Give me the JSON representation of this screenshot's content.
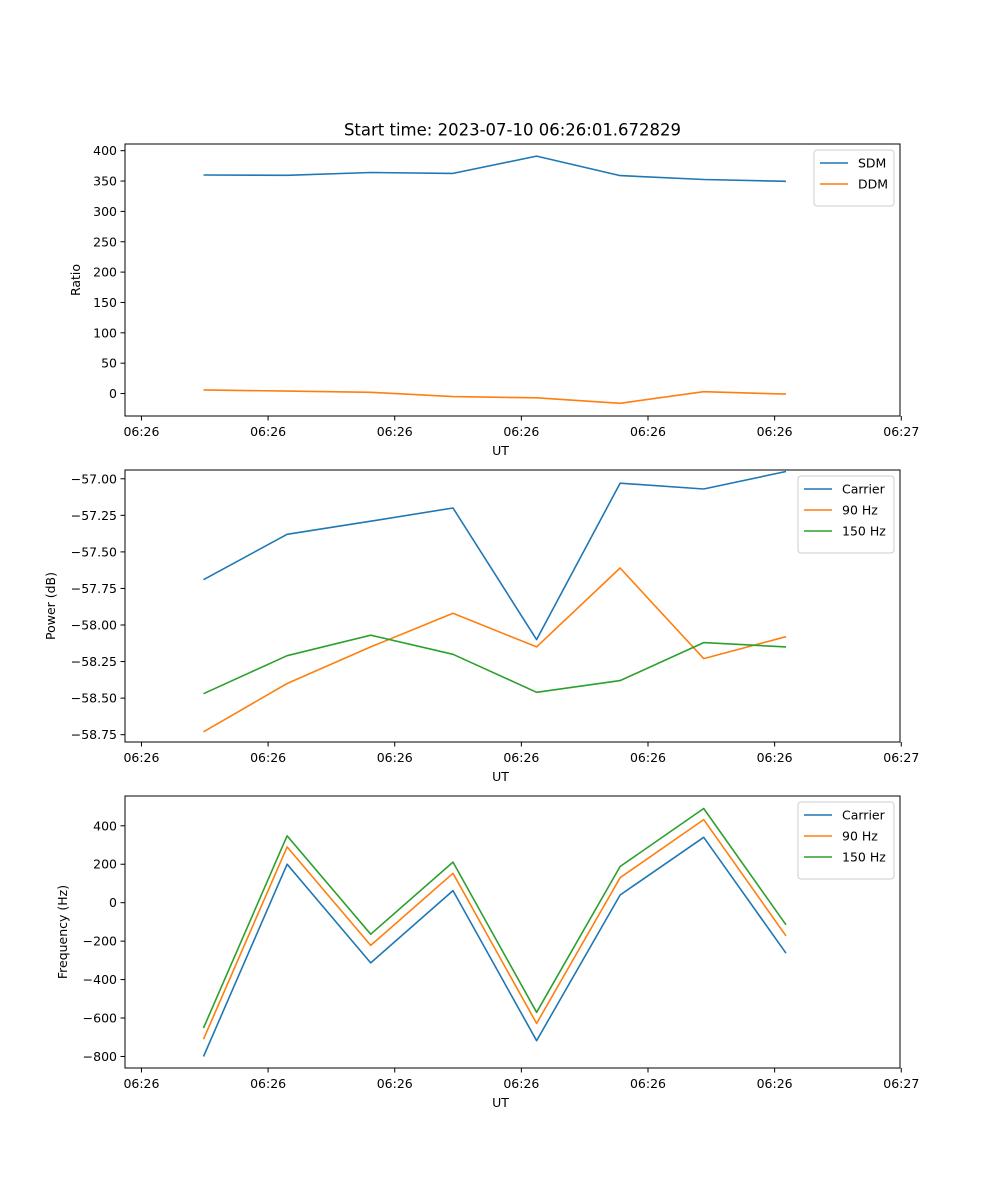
{
  "figure_title": "Start time: 2023-07-10 06:26:01.672829",
  "colors": {
    "blue": "#1f77b4",
    "orange": "#ff7f0e",
    "green": "#2ca02c"
  },
  "chart_data": [
    {
      "type": "line",
      "xlabel": "UT",
      "ylabel": "Ratio",
      "x_tick_labels": [
        "06:26",
        "06:26",
        "06:26",
        "06:26",
        "06:26",
        "06:26",
        "06:27"
      ],
      "x_tick_positions": [
        0,
        1,
        2,
        3,
        4,
        5,
        6
      ],
      "xlim": [
        -0.13,
        5.99
      ],
      "x": [
        0.49,
        1.15,
        1.81,
        2.46,
        3.12,
        3.78,
        4.44,
        5.09
      ],
      "ylim": [
        -37,
        411
      ],
      "yticks": [
        0,
        50,
        100,
        150,
        200,
        250,
        300,
        350,
        400
      ],
      "legend_position": "top-right",
      "series": [
        {
          "name": "SDM",
          "color": "#1f77b4",
          "values": [
            360,
            359.5,
            364,
            362.5,
            391,
            359,
            352.5,
            349.5
          ]
        },
        {
          "name": "DDM",
          "color": "#ff7f0e",
          "values": [
            6,
            4,
            2,
            -5,
            -7,
            -16,
            3,
            -1
          ]
        }
      ]
    },
    {
      "type": "line",
      "xlabel": "UT",
      "ylabel": "Power (dB)",
      "x_tick_labels": [
        "06:26",
        "06:26",
        "06:26",
        "06:26",
        "06:26",
        "06:26",
        "06:27"
      ],
      "x_tick_positions": [
        0,
        1,
        2,
        3,
        4,
        5,
        6
      ],
      "xlim": [
        -0.13,
        5.99
      ],
      "x": [
        0.49,
        1.15,
        1.81,
        2.46,
        3.12,
        3.78,
        4.44,
        5.09
      ],
      "ylim": [
        -58.8,
        -56.94
      ],
      "yticks": [
        -58.75,
        -58.5,
        -58.25,
        -58.0,
        -57.75,
        -57.5,
        -57.25,
        -57.0
      ],
      "ytick_labels": [
        "−58.75",
        "−58.50",
        "−58.25",
        "−58.00",
        "−57.75",
        "−57.50",
        "−57.25",
        "−57.00"
      ],
      "legend_position": "top-right",
      "series": [
        {
          "name": "Carrier",
          "color": "#1f77b4",
          "values": [
            -57.69,
            -57.38,
            -57.29,
            -57.2,
            -58.1,
            -57.03,
            -57.07,
            -56.95
          ]
        },
        {
          "name": "90 Hz",
          "color": "#ff7f0e",
          "values": [
            -58.73,
            -58.4,
            -58.15,
            -57.92,
            -58.15,
            -57.61,
            -58.23,
            -58.08
          ]
        },
        {
          "name": "150 Hz",
          "color": "#2ca02c",
          "values": [
            -58.47,
            -58.21,
            -58.07,
            -58.2,
            -58.46,
            -58.38,
            -58.12,
            -58.15
          ]
        }
      ]
    },
    {
      "type": "line",
      "xlabel": "UT",
      "ylabel": "Frequency (Hz)",
      "x_tick_labels": [
        "06:26",
        "06:26",
        "06:26",
        "06:26",
        "06:26",
        "06:26",
        "06:27"
      ],
      "x_tick_positions": [
        0,
        1,
        2,
        3,
        4,
        5,
        6
      ],
      "xlim": [
        -0.13,
        5.99
      ],
      "x": [
        0.49,
        1.15,
        1.81,
        2.46,
        3.12,
        3.78,
        4.44,
        5.09
      ],
      "ylim": [
        -860,
        555
      ],
      "yticks": [
        -800,
        -600,
        -400,
        -200,
        0,
        200,
        400
      ],
      "ytick_labels": [
        "−800",
        "−600",
        "−400",
        "−200",
        "0",
        "200",
        "400"
      ],
      "legend_position": "top-right",
      "series": [
        {
          "name": "Carrier",
          "color": "#1f77b4",
          "values": [
            -800,
            200,
            -313,
            63,
            -718,
            40,
            340,
            -263
          ]
        },
        {
          "name": "90 Hz",
          "color": "#ff7f0e",
          "values": [
            -710,
            290,
            -222,
            153,
            -628,
            130,
            432,
            -173
          ]
        },
        {
          "name": "150 Hz",
          "color": "#2ca02c",
          "values": [
            -652,
            348,
            -164,
            211,
            -570,
            188,
            490,
            -115
          ]
        }
      ]
    }
  ]
}
